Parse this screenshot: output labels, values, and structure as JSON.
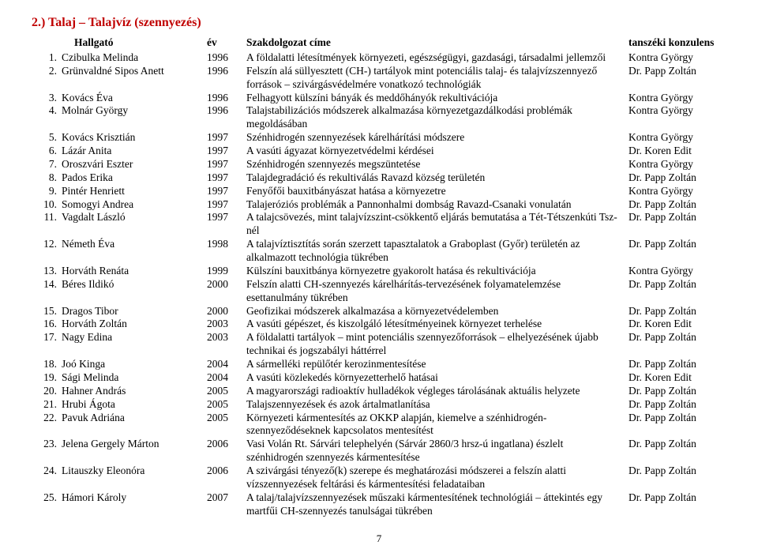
{
  "section_title": "2.) Talaj – Talajvíz (szennyezés)",
  "columns": {
    "name": "Hallgató",
    "year": "év",
    "title": "Szakdolgozat címe",
    "consultant": "tanszéki konzulens"
  },
  "rows": [
    {
      "n": "1.",
      "name": "Czibulka Melinda",
      "year": "1996",
      "title": "A földalatti létesítmények környezeti, egészségügyi, gazdasági, társadalmi jellemzői",
      "cons": "Kontra György"
    },
    {
      "n": "2.",
      "name": "Grünvaldné Sipos Anett",
      "year": "1996",
      "title": "Felszín alá süllyesztett (CH-) tartályok mint potenciális talaj- és talajvízszennyező források – szivárgásvédelmére vonatkozó technológiák",
      "cons": "Dr. Papp Zoltán"
    },
    {
      "n": "3.",
      "name": "Kovács Éva",
      "year": "1996",
      "title": "Felhagyott külszíni bányák és meddőhányók rekultivációja",
      "cons": "Kontra György"
    },
    {
      "n": "4.",
      "name": "Molnár György",
      "year": "1996",
      "title": "Talajstabilizációs módszerek alkalmazása környezetgazdálkodási problémák megoldásában",
      "cons": "Kontra György"
    },
    {
      "n": "5.",
      "name": "Kovács Krisztián",
      "year": "1997",
      "title": "Szénhidrogén szennyezések kárelhárítási módszere",
      "cons": "Kontra György"
    },
    {
      "n": "6.",
      "name": "Lázár Anita",
      "year": "1997",
      "title": "A vasúti ágyazat környezetvédelmi kérdései",
      "cons": "Dr. Koren Edit"
    },
    {
      "n": "7.",
      "name": "Oroszvári Eszter",
      "year": "1997",
      "title": "Szénhidrogén szennyezés megszüntetése",
      "cons": "Kontra György"
    },
    {
      "n": "8.",
      "name": "Pados Erika",
      "year": "1997",
      "title": "Talajdegradáció és rekultiválás Ravazd község területén",
      "cons": "Dr. Papp Zoltán"
    },
    {
      "n": "9.",
      "name": "Pintér Henriett",
      "year": "1997",
      "title": "Fenyőfői bauxitbányászat hatása a környezetre",
      "cons": "Kontra György"
    },
    {
      "n": "10.",
      "name": "Somogyi Andrea",
      "year": "1997",
      "title": "Talajeróziós problémák a Pannonhalmi dombság Ravazd-Csanaki vonulatán",
      "cons": "Dr. Papp Zoltán"
    },
    {
      "n": "11.",
      "name": "Vagdalt László",
      "year": "1997",
      "title": "A talajcsövezés, mint talajvízszint-csökkentő eljárás bemutatása a Tét-Tétszenkúti Tsz-nél",
      "cons": "Dr. Papp Zoltán"
    },
    {
      "n": "12.",
      "name": "Németh Éva",
      "year": "1998",
      "title": "A talajvíztisztítás során szerzett tapasztalatok a Graboplast (Győr) területén az alkalmazott technológia tükrében",
      "cons": "Dr. Papp Zoltán"
    },
    {
      "n": "13.",
      "name": "Horváth Renáta",
      "year": "1999",
      "title": "Külszíni bauxitbánya környezetre gyakorolt hatása és rekultivációja",
      "cons": "Kontra György"
    },
    {
      "n": "14.",
      "name": "Béres Ildikó",
      "year": "2000",
      "title": "Felszín alatti CH-szennyezés kárelhárítás-tervezésének folyamatelemzése esettanulmány tükrében",
      "cons": "Dr. Papp Zoltán"
    },
    {
      "n": "15.",
      "name": "Dragos Tibor",
      "year": "2000",
      "title": "Geofizikai módszerek alkalmazása a környezetvédelemben",
      "cons": "Dr. Papp Zoltán"
    },
    {
      "n": "16.",
      "name": "Horváth Zoltán",
      "year": "2003",
      "title": "A vasúti gépészet, és kiszolgáló létesítményeinek környezet terhelése",
      "cons": "Dr. Koren Edit"
    },
    {
      "n": "17.",
      "name": "Nagy Edina",
      "year": "2003",
      "title": "A földalatti tartályok – mint potenciális szennyezőforrások – elhelyezésének újabb technikai és jogszabályi háttérrel",
      "cons": "Dr. Papp Zoltán"
    },
    {
      "n": "18.",
      "name": "Joó Kinga",
      "year": "2004",
      "title": "A sármelléki repülőtér kerozinmentesítése",
      "cons": "Dr. Papp Zoltán"
    },
    {
      "n": "19.",
      "name": "Sági Melinda",
      "year": "2004",
      "title": "A vasúti közlekedés környezetterhelő hatásai",
      "cons": "Dr. Koren Edit"
    },
    {
      "n": "20.",
      "name": "Hahner András",
      "year": "2005",
      "title": "A magyarországi radioaktív hulladékok végleges tárolásának aktuális helyzete",
      "cons": "Dr. Papp Zoltán"
    },
    {
      "n": "21.",
      "name": "Hrubi Ágota",
      "year": "2005",
      "title": "Talajszennyezések és azok ártalmatlanítása",
      "cons": "Dr. Papp Zoltán"
    },
    {
      "n": "22.",
      "name": "Pavuk Adriána",
      "year": "2005",
      "title": "Környezeti kármentesítés az OKKP alapján, kiemelve a szénhidrogén-szennyeződéseknek kapcsolatos mentesítést",
      "cons": "Dr. Papp Zoltán"
    },
    {
      "n": "23.",
      "name": "Jelena Gergely Márton",
      "year": "2006",
      "title": "Vasi Volán Rt. Sárvári telephelyén (Sárvár 2860/3 hrsz-ú ingatlana) észlelt szénhidrogén szennyezés kármentesítése",
      "cons": "Dr. Papp Zoltán"
    },
    {
      "n": "24.",
      "name": "Litauszky Eleonóra",
      "year": "2006",
      "title": "A szivárgási tényező(k) szerepe és meghatározási módszerei a felszín alatti vízszennyezések feltárási és kármentesítési feladataiban",
      "cons": "Dr. Papp Zoltán"
    },
    {
      "n": "25.",
      "name": "Hámori Károly",
      "year": "2007",
      "title": "A talaj/talajvízszennyezések műszaki kármentesítének technológiái – áttekintés egy martfűi CH-szennyezés tanulságai tükrében",
      "cons": "Dr. Papp Zoltán"
    }
  ],
  "page_number": "7"
}
